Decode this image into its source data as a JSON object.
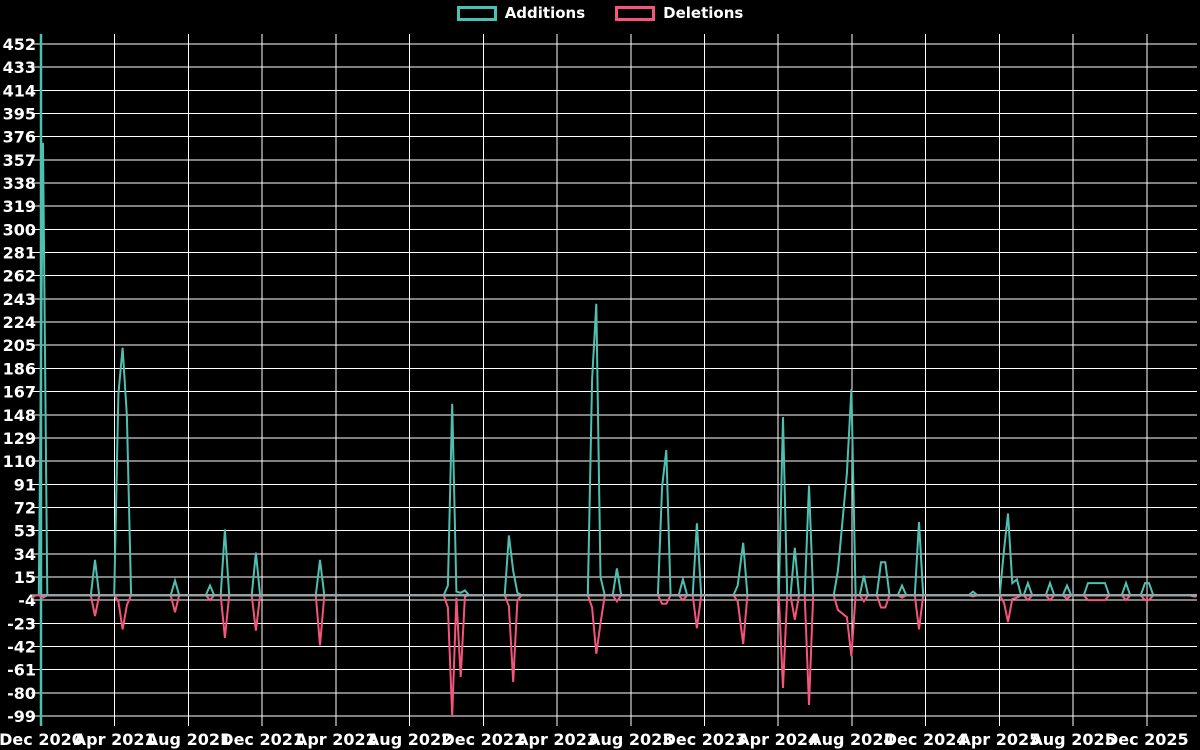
{
  "legend": {
    "items": [
      {
        "label": "Additions",
        "color": "#4ec0b1"
      },
      {
        "label": "Deletions",
        "color": "#f4557a"
      }
    ]
  },
  "colors": {
    "background": "#000000",
    "grid": "#ffffff",
    "text": "#ffffff",
    "additions": "#4ec0b1",
    "deletions": "#f4557a",
    "zero_baseline": "#95a2a8",
    "y_axis_line": "#4ec0b1"
  },
  "chart_data": {
    "type": "line",
    "title": "",
    "xlabel": "",
    "ylabel": "",
    "grid": true,
    "legend_position": "top-center",
    "x_axis": {
      "tick_labels": [
        "Dec 2020",
        "Apr 2021",
        "Aug 2021",
        "Dec 2021",
        "Apr 2022",
        "Aug 2022",
        "Dec 2022",
        "Apr 2023",
        "Aug 2023",
        "Dec 2023",
        "Apr 2024",
        "Aug 2024",
        "Dec 2024",
        "Apr 2025",
        "Aug 2025",
        "Dec 2025"
      ],
      "tick_months": [
        0,
        4,
        8,
        12,
        16,
        20,
        24,
        28,
        32,
        36,
        40,
        44,
        48,
        52,
        56,
        60
      ],
      "range_months": [
        -0.5,
        62.7
      ]
    },
    "y_axis": {
      "min": -99,
      "max": 452,
      "step": 19,
      "tick_labels": [
        "452",
        "433",
        "414",
        "395",
        "376",
        "357",
        "338",
        "319",
        "300",
        "281",
        "262",
        "243",
        "224",
        "205",
        "186",
        "167",
        "148",
        "129",
        "110",
        "91",
        "72",
        "53",
        "34",
        "15",
        "-4",
        "-23",
        "-42",
        "-61",
        "-80",
        "-99"
      ]
    },
    "series": [
      {
        "name": "Additions",
        "color": "#4ec0b1",
        "value_index": 1
      },
      {
        "name": "Deletions",
        "color": "#f4557a",
        "value_index": 2
      }
    ],
    "points_format": "[months_since_Dec_2020, additions, deletions] — both series are 0 between listed events; values estimated from gridlines",
    "points": [
      [
        -0.5,
        0,
        -2
      ],
      [
        0.11,
        371,
        -2
      ],
      [
        2.93,
        29,
        -17
      ],
      [
        4.2,
        165,
        -5
      ],
      [
        4.43,
        203,
        -28
      ],
      [
        4.66,
        147,
        -8
      ],
      [
        7.27,
        12,
        -14
      ],
      [
        9.17,
        8,
        -4
      ],
      [
        9.98,
        54,
        -35
      ],
      [
        11.66,
        35,
        -29
      ],
      [
        15.14,
        29,
        -41
      ],
      [
        22.08,
        8,
        -10
      ],
      [
        22.31,
        157,
        -99
      ],
      [
        22.54,
        3,
        -2
      ],
      [
        22.77,
        2,
        -67
      ],
      [
        23.0,
        4,
        -1
      ],
      [
        25.39,
        49,
        -9
      ],
      [
        25.62,
        20,
        -71
      ],
      [
        25.85,
        2,
        -4
      ],
      [
        29.9,
        177,
        -10
      ],
      [
        30.13,
        239,
        -48
      ],
      [
        30.36,
        15,
        -23
      ],
      [
        31.25,
        22,
        -5
      ],
      [
        33.7,
        89,
        -7
      ],
      [
        33.93,
        119,
        -7
      ],
      [
        34.83,
        13,
        -4
      ],
      [
        35.59,
        59,
        -27
      ],
      [
        37.8,
        8,
        -5
      ],
      [
        38.1,
        43,
        -40
      ],
      [
        40.26,
        146,
        -76
      ],
      [
        40.9,
        39,
        -20
      ],
      [
        41.67,
        90,
        -90
      ],
      [
        43.24,
        20,
        -12
      ],
      [
        43.73,
        100,
        -18
      ],
      [
        43.97,
        169,
        -50
      ],
      [
        44.65,
        16,
        -5
      ],
      [
        45.58,
        27,
        -10
      ],
      [
        45.81,
        27,
        -10
      ],
      [
        46.72,
        8,
        -2
      ],
      [
        47.64,
        60,
        -28
      ],
      [
        50.57,
        3,
        -1
      ],
      [
        52.25,
        37,
        -6
      ],
      [
        52.47,
        67,
        -22
      ],
      [
        52.7,
        10,
        -3
      ],
      [
        52.95,
        13,
        -2
      ],
      [
        53.55,
        10,
        -4
      ],
      [
        54.75,
        10,
        -4
      ],
      [
        55.67,
        8,
        -3
      ],
      [
        56.81,
        10,
        -4
      ],
      [
        57.3,
        10,
        -4
      ],
      [
        57.73,
        10,
        -4
      ],
      [
        58.87,
        10,
        -4
      ],
      [
        59.9,
        10,
        -4
      ],
      [
        60.12,
        10,
        -4
      ],
      [
        62.55,
        0,
        -1
      ],
      [
        62.7,
        0,
        -1
      ]
    ]
  }
}
